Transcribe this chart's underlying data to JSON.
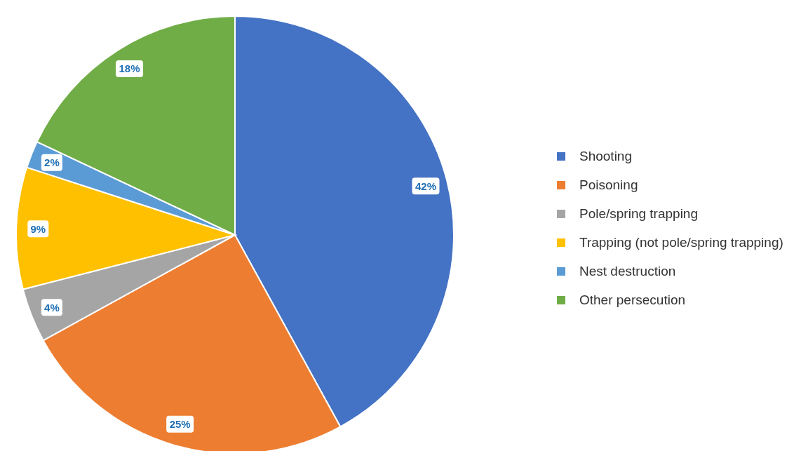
{
  "chart_data": {
    "type": "pie",
    "categories": [
      "Shooting",
      "Poisoning",
      "Pole/spring trapping",
      "Trapping (not pole/spring trapping)",
      "Nest destruction",
      "Other persecution"
    ],
    "values": [
      42,
      25,
      4,
      9,
      2,
      18
    ],
    "colors": [
      "#4472c4",
      "#ed7d31",
      "#a5a5a5",
      "#ffc000",
      "#5b9bd5",
      "#70ad47"
    ],
    "value_labels": [
      "42%",
      "25%",
      "4%",
      "9%",
      "2%",
      "18%"
    ],
    "legend": "right"
  }
}
